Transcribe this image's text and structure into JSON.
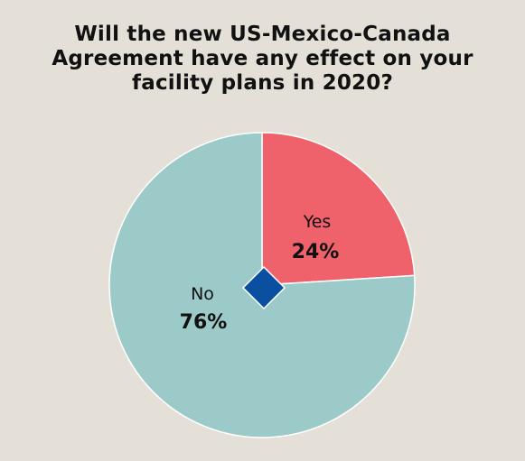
{
  "chart_data": {
    "type": "pie",
    "title": "Will the new US-Mexico-Canada\nAgreement have any effect on your\nfacility plans in 2020?",
    "slices": [
      {
        "label": "Yes",
        "value": 24,
        "value_label": "24%",
        "color": "#f0626b"
      },
      {
        "label": "No",
        "value": 76,
        "value_label": "76%",
        "color": "#9ccac8"
      }
    ],
    "center_marker_color": "#0a4fa0"
  }
}
